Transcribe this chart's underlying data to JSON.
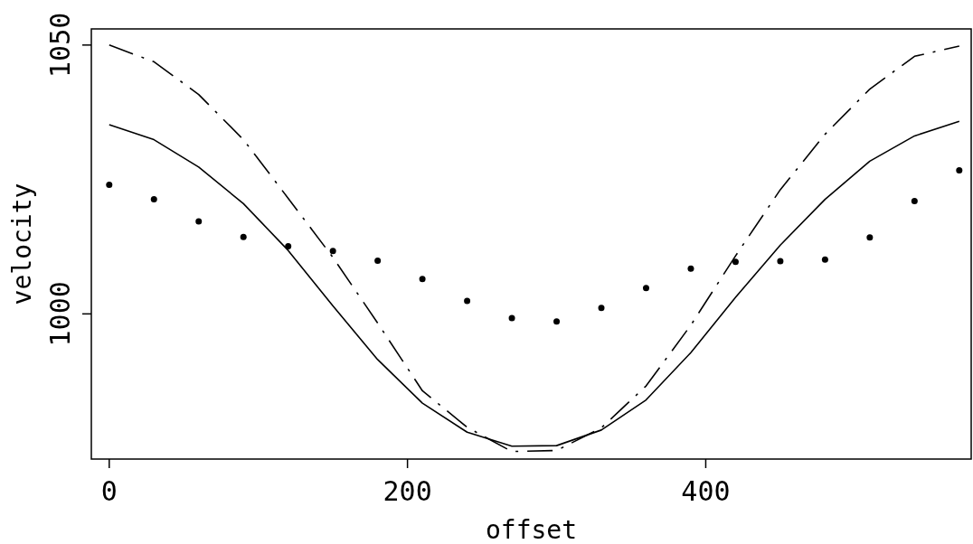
{
  "chart_data": {
    "type": "scatter",
    "xlabel": "offset",
    "ylabel": "velocity",
    "x": [
      0,
      30,
      60,
      90,
      120,
      150,
      180,
      210,
      240,
      270,
      300,
      330,
      360,
      390,
      420,
      450,
      480,
      510,
      540,
      570
    ],
    "xlim": [
      -12,
      578
    ],
    "ylim": [
      973,
      1053
    ],
    "xticks": [
      0,
      200,
      400
    ],
    "yticks": [
      1000,
      1050
    ],
    "grid": false,
    "series": [
      {
        "marker": "circle",
        "color": "#000000",
        "values": [
          1024.0,
          1021.3,
          1017.2,
          1014.3,
          1012.6,
          1011.7,
          1009.9,
          1006.5,
          1002.4,
          999.2,
          998.6,
          1001.1,
          1004.8,
          1008.4,
          1009.7,
          1009.8,
          1010.1,
          1014.2,
          1021.0,
          1026.7
        ]
      },
      {
        "type": "line",
        "line_style": "solid",
        "color": "#000000",
        "values": [
          1035.2,
          1032.4,
          1027.3,
          1020.5,
          1011.8,
          1001.5,
          991.5,
          983.4,
          978.0,
          975.4,
          975.5,
          978.4,
          984.0,
          992.8,
          1003.1,
          1012.8,
          1021.3,
          1028.4,
          1033.1,
          1035.8
        ]
      },
      {
        "type": "line",
        "line_style": "dashdot",
        "color": "#000000",
        "values": [
          1050.0,
          1046.9,
          1040.8,
          1032.4,
          1021.5,
          1010.5,
          998.3,
          985.7,
          978.9,
          974.4,
          974.6,
          978.8,
          986.6,
          997.9,
          1010.8,
          1023.1,
          1033.4,
          1041.8,
          1047.9,
          1049.8
        ]
      }
    ]
  }
}
